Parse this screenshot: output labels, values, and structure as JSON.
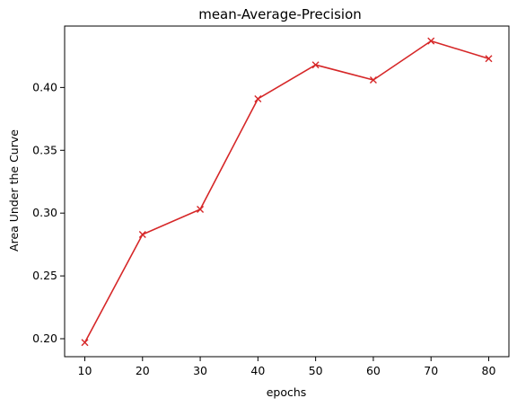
{
  "chart_data": {
    "type": "line",
    "title": "mean-Average-Precision",
    "xlabel": "epochs",
    "ylabel": "Area Under the Curve",
    "x": [
      10,
      20,
      30,
      40,
      50,
      60,
      70,
      80
    ],
    "series": [
      {
        "values": [
          0.197,
          0.283,
          0.303,
          0.391,
          0.418,
          0.406,
          0.437,
          0.423
        ],
        "color": "#d62728",
        "marker": "x"
      }
    ],
    "xticks": [
      10,
      20,
      30,
      40,
      50,
      60,
      70,
      80
    ],
    "xtick_labels": [
      "10",
      "20",
      "30",
      "40",
      "50",
      "60",
      "70",
      "80"
    ],
    "yticks": [
      0.2,
      0.25,
      0.3,
      0.35,
      0.4
    ],
    "ytick_labels": [
      "0.20",
      "0.25",
      "0.30",
      "0.35",
      "0.40"
    ],
    "xlim": [
      6.5,
      83.5
    ],
    "ylim": [
      0.1857,
      0.4489
    ],
    "grid": false,
    "legend": false
  }
}
